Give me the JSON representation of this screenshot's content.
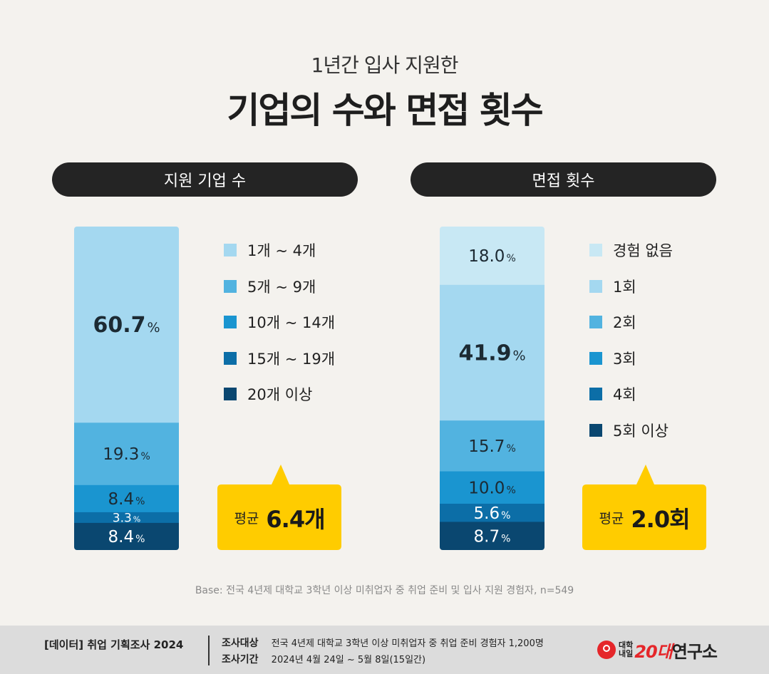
{
  "header": {
    "subtitle": "1년간 입사 지원한",
    "title": "기업의 수와 면접 횟수"
  },
  "colors": {
    "shade1": "#a4d8f0",
    "shade2": "#52b3e0",
    "shade3": "#1a95d0",
    "shade4": "#0c6ea7",
    "shade5": "#0a4770",
    "no_experience": "#c8e8f4",
    "callout": "#ffcc00",
    "pill": "#242424"
  },
  "chart_data": [
    {
      "type": "bar",
      "stacked": true,
      "title": "지원 기업 수",
      "series": [
        {
          "name": "1개 ~ 4개",
          "values": [
            60.7
          ],
          "label": "60.7",
          "color": "#a4d8f0"
        },
        {
          "name": "5개 ~ 9개",
          "values": [
            19.3
          ],
          "label": "19.3",
          "color": "#52b3e0"
        },
        {
          "name": "10개 ~ 14개",
          "values": [
            8.4
          ],
          "label": "8.4",
          "color": "#1a95d0"
        },
        {
          "name": "15개 ~ 19개",
          "values": [
            3.3
          ],
          "label": "3.3",
          "color": "#0c6ea7"
        },
        {
          "name": "20개 이상",
          "values": [
            8.4
          ],
          "label": "8.4",
          "color": "#0a4770"
        }
      ],
      "unit": "%",
      "average": {
        "label": "평균",
        "value": "6.4개"
      }
    },
    {
      "type": "bar",
      "stacked": true,
      "title": "면접 횟수",
      "series": [
        {
          "name": "경험 없음",
          "values": [
            18.0
          ],
          "label": "18.0",
          "color": "#c8e8f4"
        },
        {
          "name": "1회",
          "values": [
            41.9
          ],
          "label": "41.9",
          "color": "#a4d8f0"
        },
        {
          "name": "2회",
          "values": [
            15.7
          ],
          "label": "15.7",
          "color": "#52b3e0"
        },
        {
          "name": "3회",
          "values": [
            10.0
          ],
          "label": "10.0",
          "color": "#1a95d0"
        },
        {
          "name": "4회",
          "values": [
            5.6
          ],
          "label": "5.6",
          "color": "#0c6ea7"
        },
        {
          "name": "5회 이상",
          "values": [
            8.7
          ],
          "label": "8.7",
          "color": "#0a4770"
        }
      ],
      "unit": "%",
      "average": {
        "label": "평균",
        "value": "2.0회"
      }
    }
  ],
  "base_note": "Base: 전국 4년제 대학교 3학년 이상 미취업자 중 취업 준비 및 입사 지원 경험자, n=549",
  "footer": {
    "left": "[데이터] 취업 기획조사 2024",
    "target_label": "조사대상",
    "target_value": "전국 4년제 대학교 3학년 이상 미취업자 중 취업 준비 경험자 1,200명",
    "period_label": "조사기간",
    "period_value": "2024년 4월 24일 ~ 5월 8일(15일간)",
    "brand_small_top": "대학",
    "brand_small_bottom": "내일",
    "brand_red": "20대",
    "brand_main": "연구소"
  }
}
